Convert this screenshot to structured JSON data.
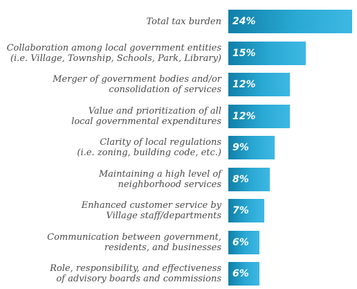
{
  "chart_data": {
    "type": "bar",
    "orientation": "horizontal",
    "title": "",
    "xlabel": "",
    "ylabel": "",
    "xlim": [
      0,
      25
    ],
    "grid": false,
    "legend": "none",
    "bar_color": "#1a9ac6",
    "categories": [
      [
        "Total tax burden"
      ],
      [
        "Collaboration among local government entities",
        "(i.e. Village, Township, Schools, Park, Library)"
      ],
      [
        "Merger of government bodies and/or",
        "consolidation of services"
      ],
      [
        "Value and prioritization of all",
        "local governmental expenditures"
      ],
      [
        "Clarity of local regulations",
        "(i.e. zoning, building code, etc.)"
      ],
      [
        "Maintaining a high level of",
        "neighborhood services"
      ],
      [
        "Enhanced customer service by",
        "Village staff/departments"
      ],
      [
        "Communication between government,",
        "residents, and businesses"
      ],
      [
        "Role, responsibility, and effectiveness",
        "of advisory boards and commissions"
      ]
    ],
    "values": [
      24,
      15,
      12,
      12,
      9,
      8,
      7,
      6,
      6
    ],
    "value_labels": [
      "24%",
      "15%",
      "12%",
      "12%",
      "9%",
      "8%",
      "7%",
      "6%",
      "6%"
    ]
  }
}
